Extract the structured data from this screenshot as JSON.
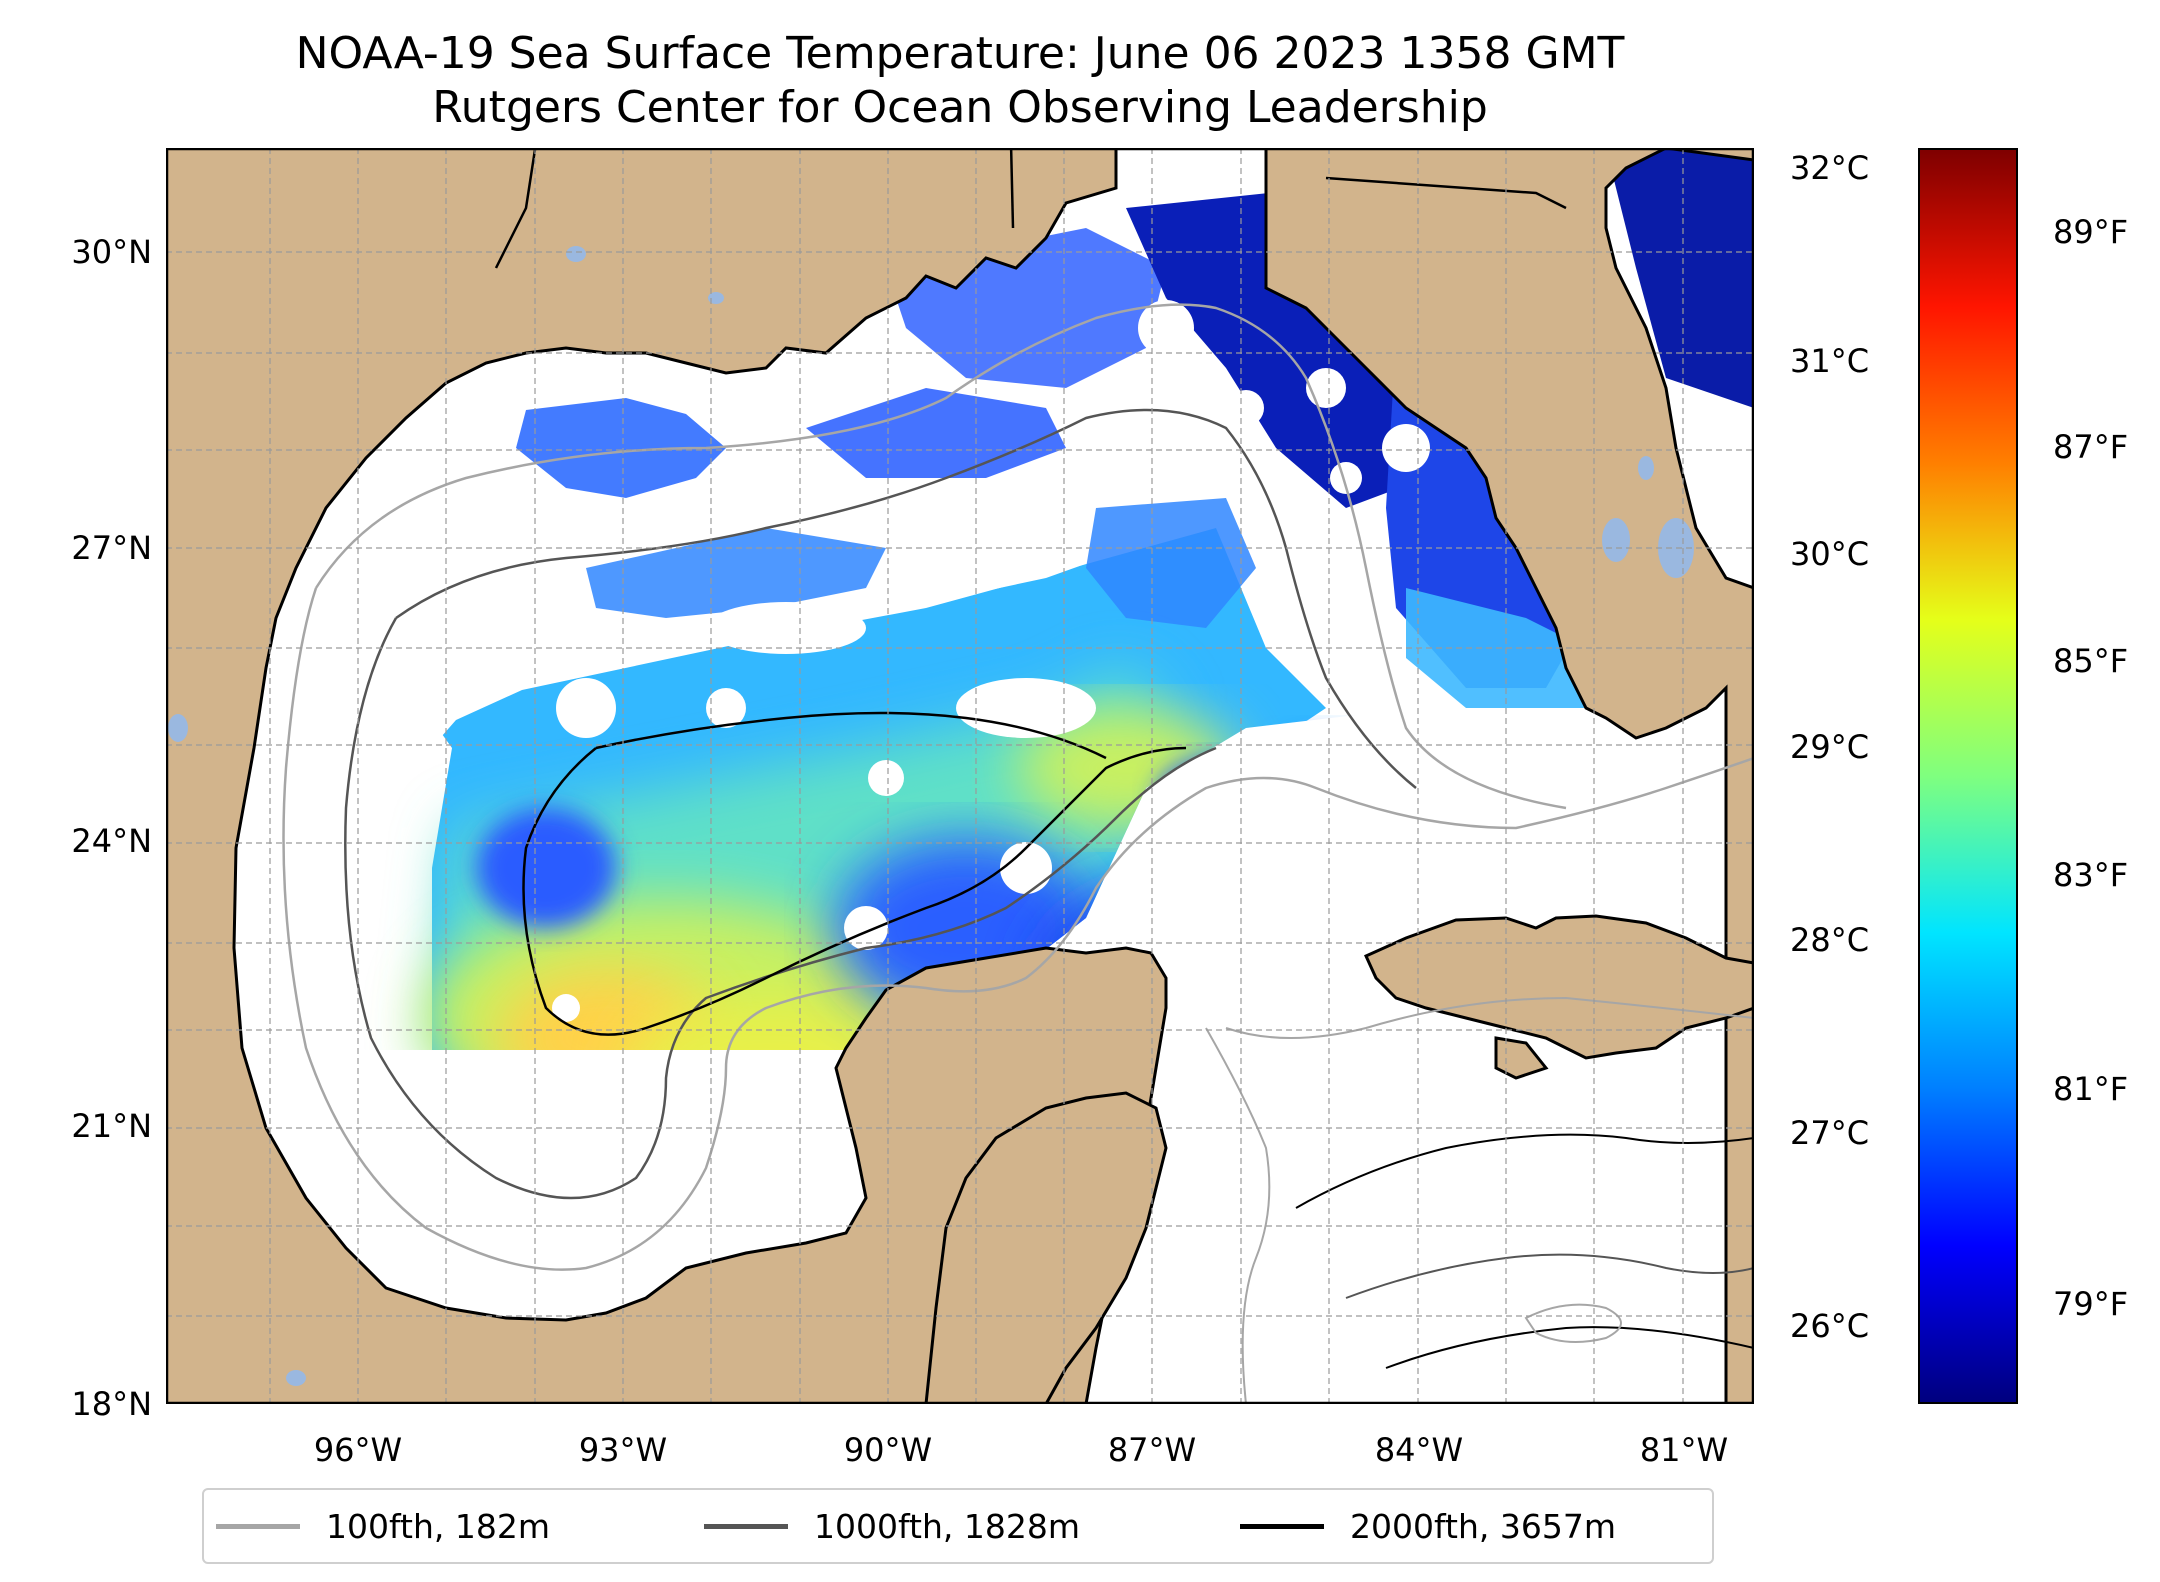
{
  "title": {
    "line1": "NOAA-19 Sea Surface Temperature: June 06 2023 1358 GMT",
    "line2": "Rutgers Center for Ocean Observing Leadership"
  },
  "map": {
    "lat_range": [
      18,
      31
    ],
    "lon_range": [
      -98,
      -80.5
    ],
    "lat_ticks": [
      "30°N",
      "27°N",
      "24°N",
      "21°N",
      "18°N"
    ],
    "lon_ticks": [
      "96°W",
      "93°W",
      "90°W",
      "87°W",
      "84°W",
      "81°W"
    ],
    "land_color": "#d2b48c",
    "lake_color": "#9ab8e0",
    "cloud_mask_color": "#ffffff",
    "gridlines": true
  },
  "colorbar": {
    "colormap": "jet",
    "celsius_ticks": [
      "32°C",
      "31°C",
      "30°C",
      "29°C",
      "28°C",
      "27°C",
      "26°C"
    ],
    "fahrenheit_ticks": [
      "89°F",
      "87°F",
      "85°F",
      "83°F",
      "81°F",
      "79°F"
    ],
    "range_c": [
      25.6,
      32.1
    ]
  },
  "legend": {
    "items": [
      {
        "label": "100fth, 182m",
        "color": "#a6a6a6"
      },
      {
        "label": "1000fth, 1828m",
        "color": "#555555"
      },
      {
        "label": "2000fth, 3657m",
        "color": "#000000"
      }
    ]
  }
}
